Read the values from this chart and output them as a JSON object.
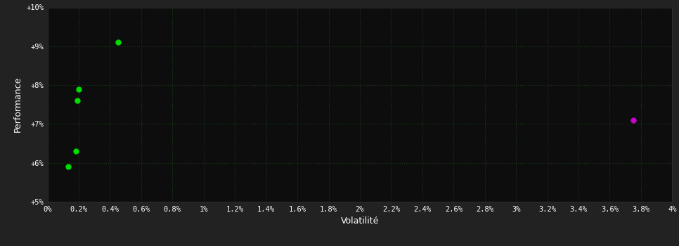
{
  "background_color": "#222222",
  "plot_bg_color": "#0d0d0d",
  "grid_color": "#1a3a1a",
  "text_color": "#ffffff",
  "xlabel": "Volatilité",
  "ylabel": "Performance",
  "xlim": [
    0,
    0.04
  ],
  "ylim": [
    0.05,
    0.1
  ],
  "xtick_labels": [
    "0%",
    "0.2%",
    "0.4%",
    "0.6%",
    "0.8%",
    "1%",
    "1.2%",
    "1.4%",
    "1.6%",
    "1.8%",
    "2%",
    "2.2%",
    "2.4%",
    "2.6%",
    "2.8%",
    "3%",
    "3.2%",
    "3.4%",
    "3.6%",
    "3.8%",
    "4%"
  ],
  "xtick_values": [
    0.0,
    0.002,
    0.004,
    0.006,
    0.008,
    0.01,
    0.012,
    0.014,
    0.016,
    0.018,
    0.02,
    0.022,
    0.024,
    0.026,
    0.028,
    0.03,
    0.032,
    0.034,
    0.036,
    0.038,
    0.04
  ],
  "ytick_labels": [
    "+5%",
    "+6%",
    "+7%",
    "+8%",
    "+9%",
    "+10%"
  ],
  "ytick_values": [
    0.05,
    0.06,
    0.07,
    0.08,
    0.09,
    0.1
  ],
  "green_points": [
    [
      0.0045,
      0.091
    ],
    [
      0.002,
      0.079
    ],
    [
      0.0019,
      0.076
    ],
    [
      0.0018,
      0.063
    ],
    [
      0.0013,
      0.059
    ]
  ],
  "magenta_points": [
    [
      0.0375,
      0.071
    ]
  ],
  "point_size": 25,
  "green_color": "#00dd00",
  "magenta_color": "#cc00cc"
}
